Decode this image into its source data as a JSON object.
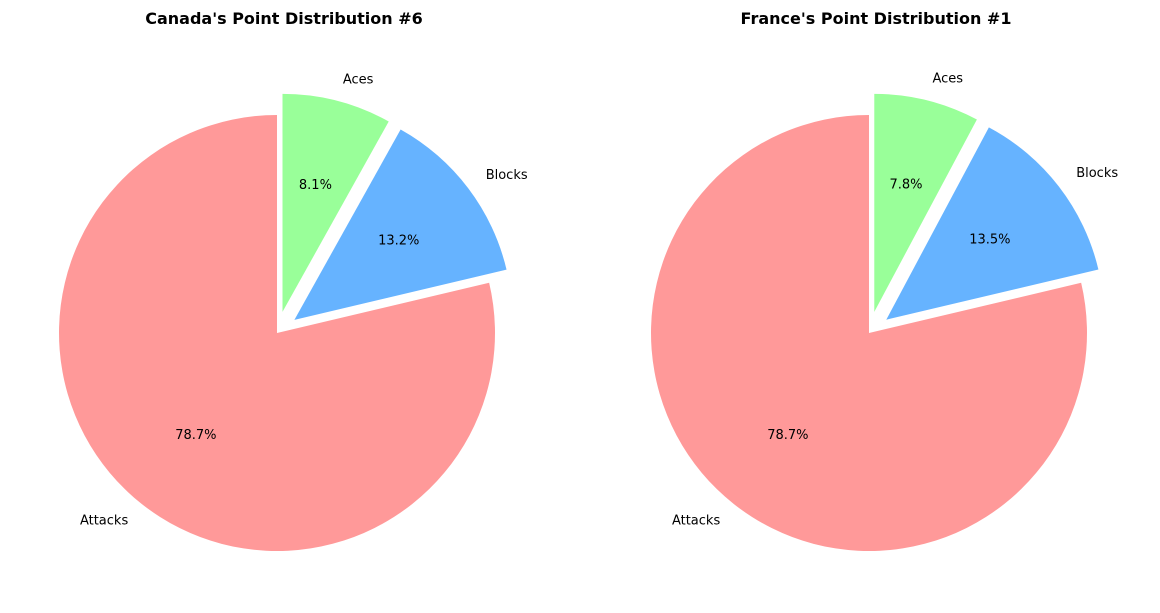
{
  "chart_data": [
    {
      "type": "pie",
      "title": "Canada's Point Distribution #6",
      "start_angle_deg": 90,
      "direction": "clockwise",
      "slices": [
        {
          "label": "Aces",
          "value": 8.1,
          "pct_text": "8.1%",
          "color": "#99ff99",
          "exploded": true
        },
        {
          "label": "Blocks",
          "value": 13.2,
          "pct_text": "13.2%",
          "color": "#66b3ff",
          "exploded": true
        },
        {
          "label": "Attacks",
          "value": 78.7,
          "pct_text": "78.7%",
          "color": "#ff9999",
          "exploded": false
        }
      ]
    },
    {
      "type": "pie",
      "title": "France's Point Distribution #1",
      "start_angle_deg": 90,
      "direction": "clockwise",
      "slices": [
        {
          "label": "Aces",
          "value": 7.8,
          "pct_text": "7.8%",
          "color": "#99ff99",
          "exploded": true
        },
        {
          "label": "Blocks",
          "value": 13.5,
          "pct_text": "13.5%",
          "color": "#66b3ff",
          "exploded": true
        },
        {
          "label": "Attacks",
          "value": 78.7,
          "pct_text": "78.7%",
          "color": "#ff9999",
          "exploded": false
        }
      ]
    }
  ]
}
